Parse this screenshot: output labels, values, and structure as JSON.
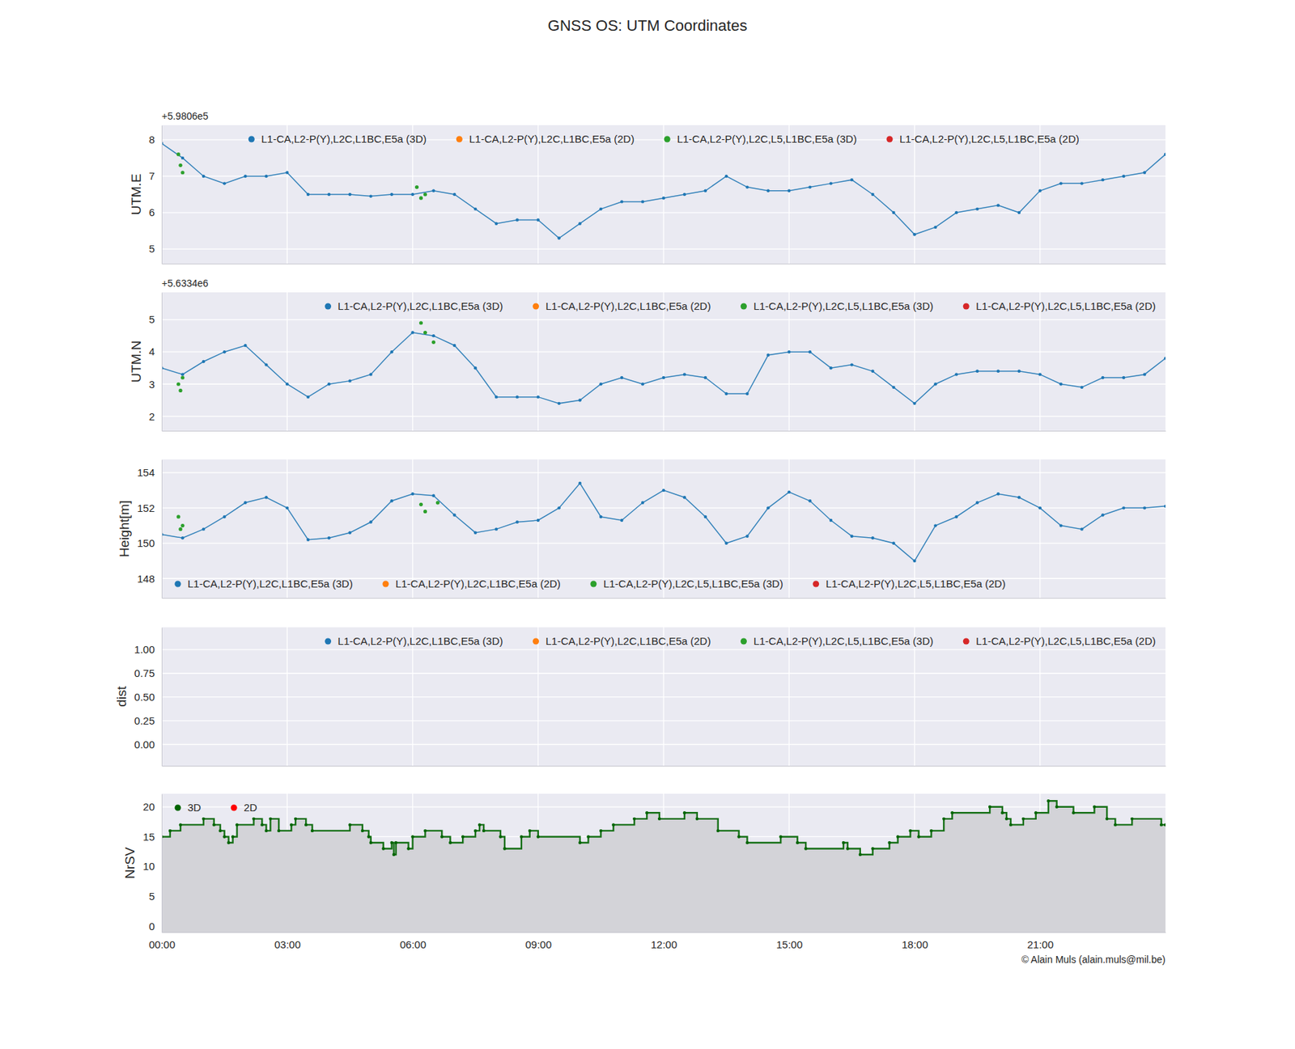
{
  "chart_data": [
    {
      "type": "line",
      "title": "GNSS OS: UTM Coordinates",
      "ylabel": "UTM.E",
      "annotations": [
        "+5.9806e5"
      ],
      "xlim": [
        0,
        24
      ],
      "xticks": [
        0,
        3,
        6,
        9,
        12,
        15,
        18,
        21
      ],
      "ylim": [
        4.6,
        8.4
      ],
      "yticks": [
        5,
        6,
        7,
        8
      ],
      "grid": true,
      "legend": "upper center",
      "tick_labels": "y",
      "series": [
        {
          "name": "L1-CA,L2-P(Y),L2C,L1BC,E5a (3D)",
          "color": "#1f77b4",
          "marker": "dot",
          "x": [
            0,
            0.5,
            1,
            1.5,
            2,
            2.5,
            3,
            3.5,
            4,
            4.5,
            5,
            5.5,
            6,
            6.5,
            7,
            7.5,
            8,
            8.5,
            9,
            9.5,
            10,
            10.5,
            11,
            11.5,
            12,
            12.5,
            13,
            13.5,
            14,
            14.5,
            15,
            15.5,
            16,
            16.5,
            17,
            17.5,
            18,
            18.5,
            19,
            19.5,
            20,
            20.5,
            21,
            21.5,
            22,
            22.5,
            23,
            23.5,
            24
          ],
          "values": [
            7.9,
            7.5,
            7.0,
            6.8,
            7.0,
            7.0,
            7.1,
            6.5,
            6.5,
            6.5,
            6.45,
            6.5,
            6.5,
            6.6,
            6.5,
            6.1,
            5.7,
            5.8,
            5.8,
            5.3,
            5.7,
            6.1,
            6.3,
            6.3,
            6.4,
            6.5,
            6.6,
            7.0,
            6.7,
            6.6,
            6.6,
            6.7,
            6.8,
            6.9,
            6.5,
            6.0,
            5.4,
            5.6,
            6.0,
            6.1,
            6.2,
            6.0,
            6.6,
            6.8,
            6.8,
            6.9,
            7.0,
            7.1,
            7.6
          ]
        },
        {
          "name": "L1-CA,L2-P(Y),L2C,L1BC,E5a (2D)",
          "color": "#ff7f0e",
          "type": "scatter",
          "x": [],
          "values": []
        },
        {
          "name": "L1-CA,L2-P(Y),L2C,L5,L1BC,E5a (3D)",
          "color": "#2ca02c",
          "type": "scatter",
          "x": [
            0.4,
            0.45,
            0.5,
            6.1,
            6.2,
            6.3
          ],
          "values": [
            7.6,
            7.3,
            7.1,
            6.7,
            6.4,
            6.5
          ]
        },
        {
          "name": "L1-CA,L2-P(Y),L2C,L5,L1BC,E5a (2D)",
          "color": "#d62728",
          "type": "scatter",
          "x": [],
          "values": []
        }
      ]
    },
    {
      "type": "line",
      "ylabel": "UTM.N",
      "annotations": [
        "+5.6334e6"
      ],
      "xlim": [
        0,
        24
      ],
      "xticks": [
        0,
        3,
        6,
        9,
        12,
        15,
        18,
        21
      ],
      "ylim": [
        1.55,
        5.85
      ],
      "yticks": [
        2,
        3,
        4,
        5
      ],
      "grid": true,
      "legend": "upper right",
      "tick_labels": "y",
      "series": [
        {
          "name": "L1-CA,L2-P(Y),L2C,L1BC,E5a (3D)",
          "color": "#1f77b4",
          "marker": "dot",
          "x": [
            0,
            0.5,
            1,
            1.5,
            2,
            2.5,
            3,
            3.5,
            4,
            4.5,
            5,
            5.5,
            6,
            6.5,
            7,
            7.5,
            8,
            8.5,
            9,
            9.5,
            10,
            10.5,
            11,
            11.5,
            12,
            12.5,
            13,
            13.5,
            14,
            14.5,
            15,
            15.5,
            16,
            16.5,
            17,
            17.5,
            18,
            18.5,
            19,
            19.5,
            20,
            20.5,
            21,
            21.5,
            22,
            22.5,
            23,
            23.5,
            24
          ],
          "values": [
            3.5,
            3.3,
            3.7,
            4.0,
            4.2,
            3.6,
            3.0,
            2.6,
            3.0,
            3.1,
            3.3,
            4.0,
            4.6,
            4.5,
            4.2,
            3.5,
            2.6,
            2.6,
            2.6,
            2.4,
            2.5,
            3.0,
            3.2,
            3.0,
            3.2,
            3.3,
            3.2,
            2.7,
            2.7,
            3.9,
            4.0,
            4.0,
            3.5,
            3.6,
            3.4,
            2.9,
            2.4,
            3.0,
            3.3,
            3.4,
            3.4,
            3.4,
            3.3,
            3.0,
            2.9,
            3.2,
            3.2,
            3.3,
            3.8
          ]
        },
        {
          "name": "L1-CA,L2-P(Y),L2C,L1BC,E5a (2D)",
          "color": "#ff7f0e",
          "type": "scatter",
          "x": [],
          "values": []
        },
        {
          "name": "L1-CA,L2-P(Y),L2C,L5,L1BC,E5a (3D)",
          "color": "#2ca02c",
          "type": "scatter",
          "x": [
            0.4,
            0.45,
            0.5,
            6.2,
            6.3,
            6.5
          ],
          "values": [
            3.0,
            2.8,
            3.2,
            4.9,
            4.6,
            4.3
          ]
        },
        {
          "name": "L1-CA,L2-P(Y),L2C,L5,L1BC,E5a (2D)",
          "color": "#d62728",
          "type": "scatter",
          "x": [],
          "values": []
        }
      ]
    },
    {
      "type": "line",
      "ylabel": "Height[m]",
      "xlim": [
        0,
        24
      ],
      "xticks": [
        0,
        3,
        6,
        9,
        12,
        15,
        18,
        21
      ],
      "ylim": [
        146.9,
        154.75
      ],
      "yticks": [
        148,
        150,
        152,
        154
      ],
      "grid": true,
      "legend": "lower left",
      "tick_labels": "y",
      "series": [
        {
          "name": "L1-CA,L2-P(Y),L2C,L1BC,E5a (3D)",
          "color": "#1f77b4",
          "marker": "dot",
          "x": [
            0,
            0.5,
            1,
            1.5,
            2,
            2.5,
            3,
            3.5,
            4,
            4.5,
            5,
            5.5,
            6,
            6.5,
            7,
            7.5,
            8,
            8.5,
            9,
            9.5,
            10,
            10.5,
            11,
            11.5,
            12,
            12.5,
            13,
            13.5,
            14,
            14.5,
            15,
            15.5,
            16,
            16.5,
            17,
            17.5,
            18,
            18.5,
            19,
            19.5,
            20,
            20.5,
            21,
            21.5,
            22,
            22.5,
            23,
            23.5,
            24
          ],
          "values": [
            150.5,
            150.3,
            150.8,
            151.5,
            152.3,
            152.6,
            152.0,
            150.2,
            150.3,
            150.6,
            151.2,
            152.4,
            152.8,
            152.7,
            151.6,
            150.6,
            150.8,
            151.2,
            151.3,
            152.0,
            153.4,
            151.5,
            151.3,
            152.3,
            153.0,
            152.6,
            151.5,
            150.0,
            150.4,
            152.0,
            152.9,
            152.4,
            151.3,
            150.4,
            150.3,
            150.0,
            149.0,
            151.0,
            151.5,
            152.3,
            152.8,
            152.6,
            152.0,
            151.0,
            150.8,
            151.6,
            152.0,
            152.0,
            152.1
          ]
        },
        {
          "name": "L1-CA,L2-P(Y),L2C,L1BC,E5a (2D)",
          "color": "#ff7f0e",
          "type": "scatter",
          "x": [],
          "values": []
        },
        {
          "name": "L1-CA,L2-P(Y),L2C,L5,L1BC,E5a (3D)",
          "color": "#2ca02c",
          "type": "scatter",
          "x": [
            0.4,
            0.45,
            0.5,
            6.2,
            6.3,
            6.6
          ],
          "values": [
            151.5,
            150.8,
            151.0,
            152.2,
            151.8,
            152.3
          ]
        },
        {
          "name": "L1-CA,L2-P(Y),L2C,L5,L1BC,E5a (2D)",
          "color": "#d62728",
          "type": "scatter",
          "x": [],
          "values": []
        }
      ]
    },
    {
      "type": "scatter",
      "ylabel": "dist",
      "xlim": [
        0,
        24
      ],
      "xticks": [
        0,
        3,
        6,
        9,
        12,
        15,
        18,
        21
      ],
      "ylim": [
        -0.225,
        1.235
      ],
      "yticks": [
        {
          "value": 0,
          "label": "0.00"
        },
        {
          "value": 0.25,
          "label": "0.25"
        },
        {
          "value": 0.5,
          "label": "0.50"
        },
        {
          "value": 0.75,
          "label": "0.75"
        },
        {
          "value": 1,
          "label": "1.00"
        }
      ],
      "grid": true,
      "legend": "upper right",
      "tick_labels": "y",
      "series": [
        {
          "name": "L1-CA,L2-P(Y),L2C,L1BC,E5a (3D)",
          "color": "#1f77b4",
          "x": [],
          "values": []
        },
        {
          "name": "L1-CA,L2-P(Y),L2C,L1BC,E5a (2D)",
          "color": "#ff7f0e",
          "x": [],
          "values": []
        },
        {
          "name": "L1-CA,L2-P(Y),L2C,L5,L1BC,E5a (3D)",
          "color": "#2ca02c",
          "x": [],
          "values": []
        },
        {
          "name": "L1-CA,L2-P(Y),L2C,L5,L1BC,E5a (2D)",
          "color": "#d62728",
          "x": [],
          "values": []
        }
      ]
    },
    {
      "type": "area",
      "ylabel": "NrSV",
      "annotations": [
        "© Alain Muls (alain.muls@mil.be)"
      ],
      "xlim": [
        0,
        24
      ],
      "xticks": [
        {
          "value": 0,
          "label": "00:00"
        },
        {
          "value": 3,
          "label": "03:00"
        },
        {
          "value": 6,
          "label": "06:00"
        },
        {
          "value": 9,
          "label": "09:00"
        },
        {
          "value": 12,
          "label": "12:00"
        },
        {
          "value": 15,
          "label": "15:00"
        },
        {
          "value": 18,
          "label": "18:00"
        },
        {
          "value": 21,
          "label": "21:00"
        }
      ],
      "ylim": [
        -1,
        22.2
      ],
      "yticks": [
        0,
        5,
        10,
        15,
        20
      ],
      "grid": true,
      "legend": "upper left",
      "series": [
        {
          "name": "3D",
          "color": "#006400",
          "line_style": "step",
          "marker": "dot",
          "x": [
            0,
            0.2,
            0.45,
            1,
            1.25,
            1.4,
            1.5,
            1.6,
            1.7,
            1.8,
            2.2,
            2.4,
            2.5,
            2.6,
            2.8,
            3.1,
            3.2,
            3.45,
            3.6,
            4.5,
            4.8,
            4.95,
            5,
            5.3,
            5.5,
            5.55,
            5.6,
            5.9,
            6,
            6.3,
            6.7,
            6.9,
            7.2,
            7.5,
            7.6,
            7.7,
            8.1,
            8.2,
            8.6,
            8.8,
            9,
            10,
            10.2,
            10.5,
            10.8,
            11.3,
            11.6,
            11.9,
            12.5,
            12.8,
            13.3,
            13.8,
            14,
            14.8,
            15.2,
            15.4,
            16.3,
            16.4,
            16.7,
            17,
            17.4,
            17.6,
            17.9,
            18.1,
            18.4,
            18.7,
            18.9,
            19.8,
            20.1,
            20.2,
            20.3,
            20.6,
            20.9,
            21.2,
            21.4,
            21.8,
            22.3,
            22.6,
            22.8,
            23.2,
            23.9,
            24
          ],
          "values": [
            15,
            16,
            17,
            18,
            17,
            16,
            15,
            14,
            15,
            17,
            18,
            17,
            16,
            18,
            16,
            17,
            18,
            17,
            16,
            17,
            16,
            15,
            14,
            13,
            14,
            12,
            14,
            13,
            15,
            16,
            15,
            14,
            15,
            16,
            17,
            16,
            15,
            13,
            15,
            16,
            15,
            14,
            15,
            16,
            17,
            18,
            19,
            18,
            19,
            18,
            16,
            15,
            14,
            15,
            14,
            13,
            14,
            13,
            12,
            13,
            14,
            15,
            16,
            15,
            16,
            18,
            19,
            20,
            19,
            18,
            17,
            18,
            19,
            21,
            20,
            19,
            20,
            18,
            17,
            18,
            17,
            17
          ]
        },
        {
          "name": "2D",
          "color": "#ff0000",
          "type": "scatter",
          "x": [],
          "values": []
        }
      ]
    }
  ]
}
